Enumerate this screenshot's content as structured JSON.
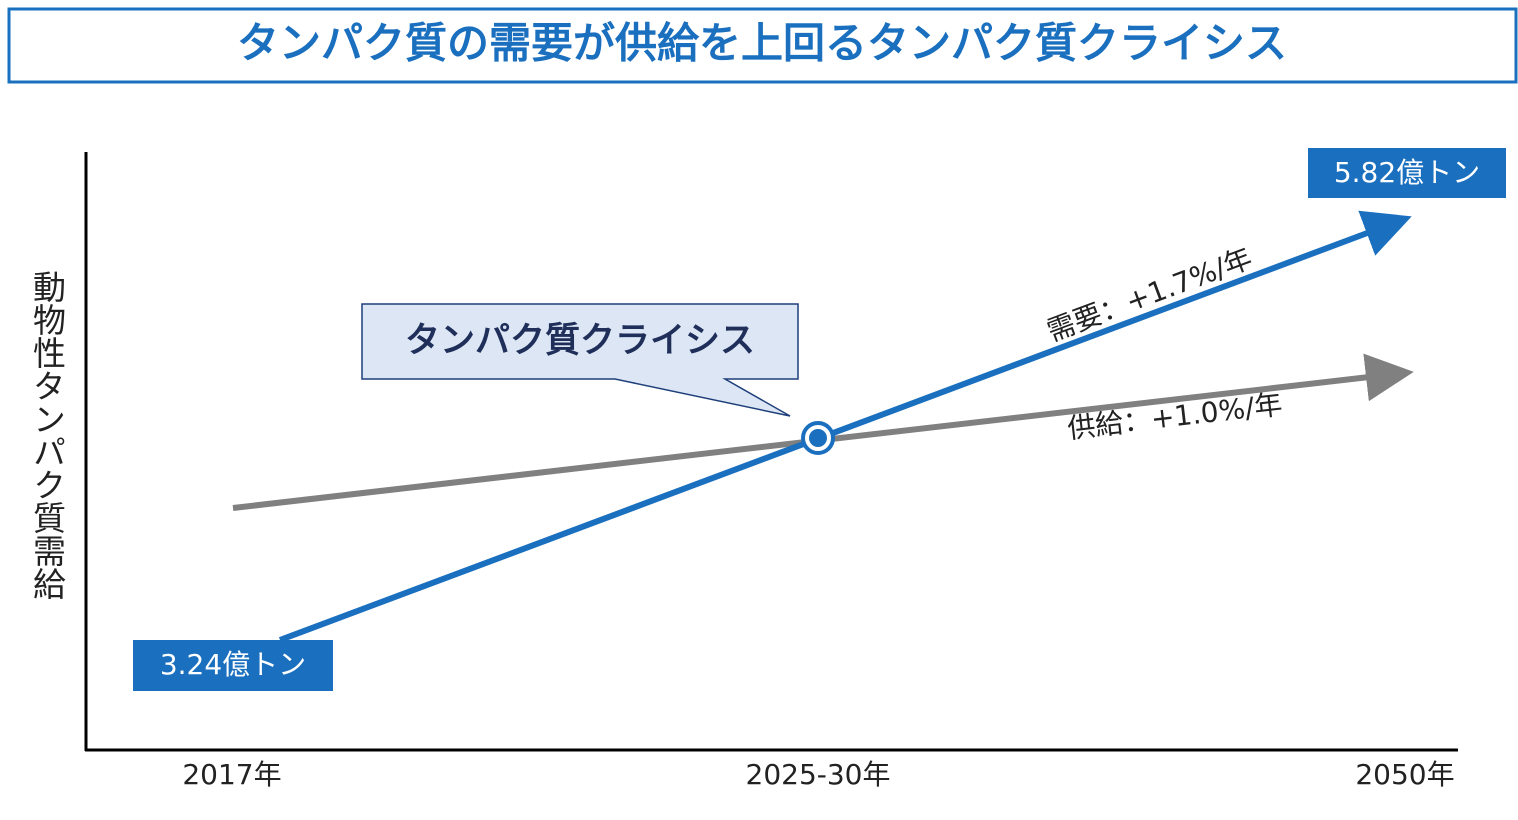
{
  "header": {
    "title": "タンパク質の需要が供給を上回るタンパク質クライシス"
  },
  "y_axis": {
    "label": "動物性タンパク質需給"
  },
  "x_axis": {
    "labels": [
      "2017年",
      "2025-30年",
      "2050年"
    ]
  },
  "callout": {
    "text": "タンパク質クライシス"
  },
  "demand": {
    "label": "需要：+1.7%/年",
    "start": "3.24億トン",
    "end": "5.82億トン"
  },
  "supply": {
    "label": "供給：+1.0%/年"
  }
}
